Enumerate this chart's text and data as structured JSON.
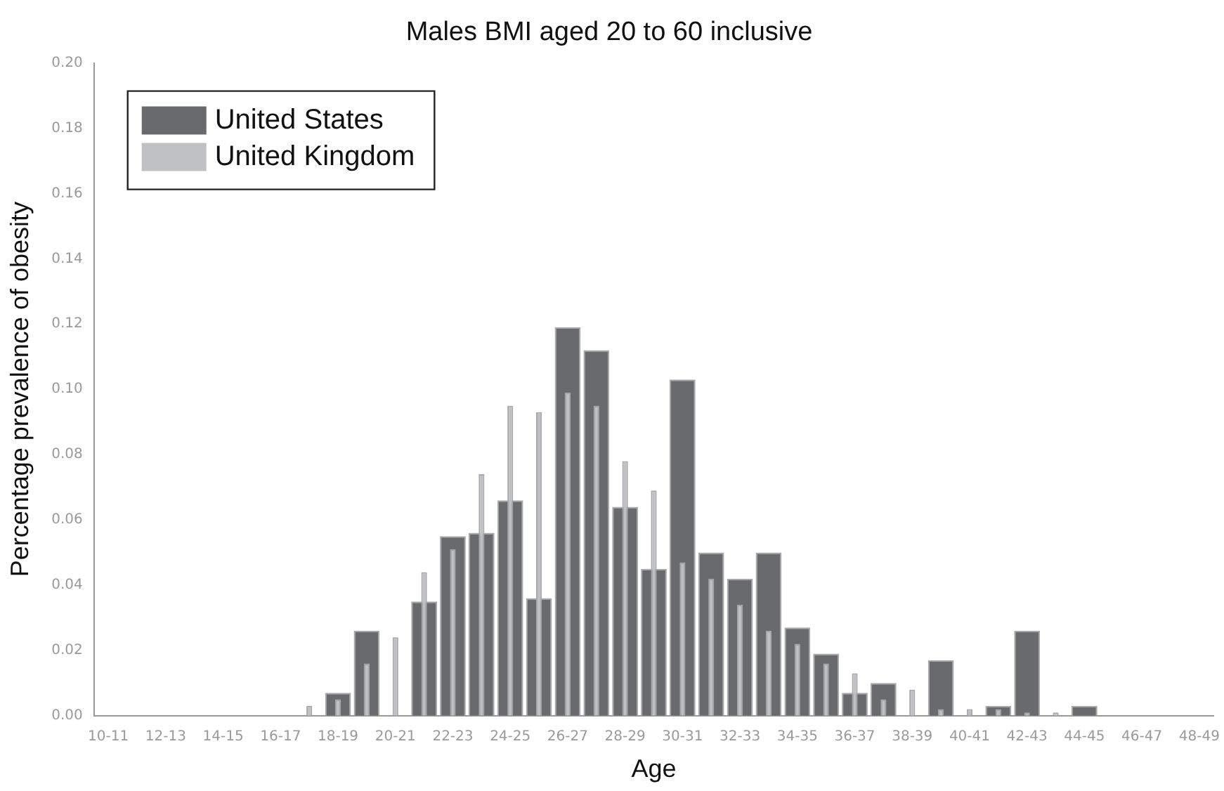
{
  "chart_data": {
    "type": "bar",
    "title": "Males BMI aged 20 to 60 inclusive",
    "xlabel": "Age",
    "ylabel": "Percentage prevalence of obesity",
    "categories": [
      "10-11",
      null,
      "12-13",
      null,
      "14-15",
      null,
      "16-17",
      null,
      "18-19",
      null,
      "20-21",
      null,
      "22-23",
      null,
      "24-25",
      null,
      "26-27",
      null,
      "28-29",
      null,
      "30-31",
      null,
      "32-33",
      null,
      "34-35",
      null,
      "36-37",
      null,
      "38-39",
      null,
      "40-41",
      null,
      "42-43",
      null,
      "44-45",
      null,
      "46-47",
      null,
      "48-49"
    ],
    "series": [
      {
        "name": "United States",
        "color": "#696a6e",
        "values": [
          0,
          0,
          0,
          0,
          0,
          0,
          0,
          0,
          0.007,
          0.026,
          0,
          0.035,
          0.055,
          0.056,
          0.066,
          0.036,
          0.119,
          0.112,
          0.064,
          0.045,
          0.103,
          0.05,
          0.042,
          0.05,
          0.027,
          0.019,
          0.007,
          0.01,
          0,
          0.017,
          0,
          0.003,
          0.026,
          0,
          0.003,
          0,
          0,
          0,
          0
        ]
      },
      {
        "name": "United Kingdom",
        "color": "#bfc0c4",
        "values": [
          0,
          0,
          0,
          0,
          0,
          0,
          0,
          0.003,
          0.005,
          0.016,
          0.024,
          0.044,
          0.051,
          0.074,
          0.095,
          0.093,
          0.099,
          0.095,
          0.078,
          0.069,
          0.047,
          0.042,
          0.034,
          0.026,
          0.022,
          0.016,
          0.013,
          0.005,
          0.008,
          0.002,
          0.002,
          0.002,
          0.001,
          0.001,
          0,
          0,
          0,
          0,
          0
        ]
      }
    ],
    "ylim": [
      0,
      0.2
    ],
    "yticks": [
      {
        "value": 0,
        "label": "0.00"
      },
      {
        "value": 0.02,
        "label": "0.02"
      },
      {
        "value": 0.04,
        "label": "0.04"
      },
      {
        "value": 0.06,
        "label": "0.06"
      },
      {
        "value": 0.08,
        "label": "0.08"
      },
      {
        "value": 0.1,
        "label": "0.10"
      },
      {
        "value": 0.12,
        "label": "0.12"
      },
      {
        "value": 0.14,
        "label": "0.14"
      },
      {
        "value": 0.16,
        "label": "0.16"
      },
      {
        "value": 0.18,
        "label": "0.18"
      },
      {
        "value": 0.2,
        "label": "0.20"
      }
    ],
    "grid": false,
    "legend": "top left"
  }
}
